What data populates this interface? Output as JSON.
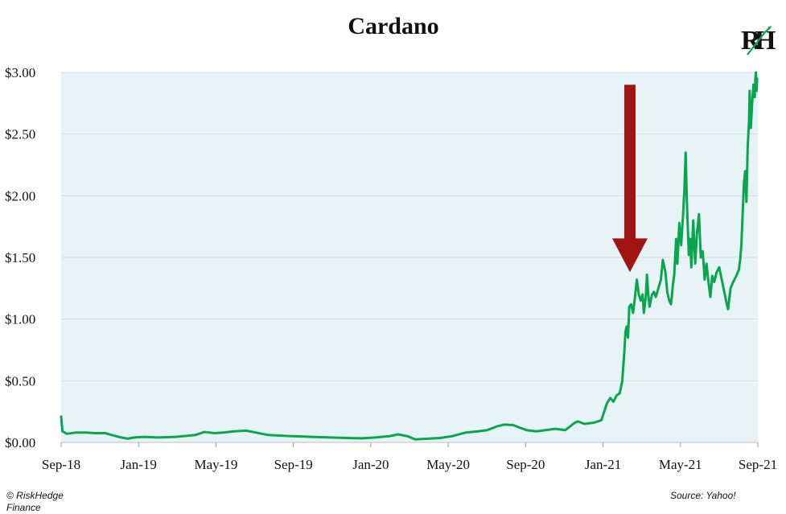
{
  "chart_data": {
    "type": "line",
    "title": "Cardano",
    "xlabel": "",
    "ylabel": "",
    "x_ticks": [
      "Sep-18",
      "Jan-19",
      "May-19",
      "Sep-19",
      "Jan-20",
      "May-20",
      "Sep-20",
      "Jan-21",
      "May-21",
      "Sep-21"
    ],
    "y_ticks": [
      "$0.00",
      "$0.50",
      "$1.00",
      "$1.50",
      "$2.00",
      "$2.50",
      "$3.00"
    ],
    "xlim": [
      "2018-09-01",
      "2021-09-05"
    ],
    "ylim": [
      0,
      3.0
    ],
    "grid": "horizontal",
    "plot_background": "#e8f3f7",
    "line_color": "#0aa64e",
    "arrow_color": "#a01414",
    "arrow_annotation": {
      "x": "2021-02-15",
      "y_top": 2.9,
      "y_tip": 1.38
    },
    "series": [
      {
        "points": [
          [
            "2018-09-01",
            0.21
          ],
          [
            "2018-09-03",
            0.09
          ],
          [
            "2018-09-10",
            0.07
          ],
          [
            "2018-09-25",
            0.08
          ],
          [
            "2018-10-10",
            0.08
          ],
          [
            "2018-10-25",
            0.075
          ],
          [
            "2018-11-10",
            0.075
          ],
          [
            "2018-11-20",
            0.06
          ],
          [
            "2018-12-05",
            0.04
          ],
          [
            "2018-12-15",
            0.03
          ],
          [
            "2018-12-25",
            0.04
          ],
          [
            "2019-01-10",
            0.045
          ],
          [
            "2019-02-01",
            0.04
          ],
          [
            "2019-03-01",
            0.045
          ],
          [
            "2019-04-01",
            0.06
          ],
          [
            "2019-04-15",
            0.085
          ],
          [
            "2019-05-01",
            0.075
          ],
          [
            "2019-05-15",
            0.08
          ],
          [
            "2019-06-01",
            0.09
          ],
          [
            "2019-06-20",
            0.095
          ],
          [
            "2019-07-05",
            0.08
          ],
          [
            "2019-07-25",
            0.06
          ],
          [
            "2019-08-15",
            0.055
          ],
          [
            "2019-09-01",
            0.05
          ],
          [
            "2019-10-01",
            0.045
          ],
          [
            "2019-11-01",
            0.04
          ],
          [
            "2019-12-01",
            0.035
          ],
          [
            "2019-12-20",
            0.033
          ],
          [
            "2020-01-10",
            0.04
          ],
          [
            "2020-02-01",
            0.05
          ],
          [
            "2020-02-15",
            0.065
          ],
          [
            "2020-03-01",
            0.05
          ],
          [
            "2020-03-13",
            0.025
          ],
          [
            "2020-04-01",
            0.03
          ],
          [
            "2020-04-20",
            0.035
          ],
          [
            "2020-05-10",
            0.05
          ],
          [
            "2020-06-01",
            0.08
          ],
          [
            "2020-06-20",
            0.09
          ],
          [
            "2020-07-05",
            0.1
          ],
          [
            "2020-07-20",
            0.13
          ],
          [
            "2020-08-01",
            0.145
          ],
          [
            "2020-08-15",
            0.14
          ],
          [
            "2020-08-25",
            0.12
          ],
          [
            "2020-09-05",
            0.1
          ],
          [
            "2020-09-20",
            0.09
          ],
          [
            "2020-10-05",
            0.1
          ],
          [
            "2020-10-20",
            0.11
          ],
          [
            "2020-11-05",
            0.1
          ],
          [
            "2020-11-20",
            0.16
          ],
          [
            "2020-11-25",
            0.17
          ],
          [
            "2020-12-05",
            0.15
          ],
          [
            "2020-12-20",
            0.16
          ],
          [
            "2021-01-01",
            0.18
          ],
          [
            "2021-01-10",
            0.32
          ],
          [
            "2021-01-15",
            0.36
          ],
          [
            "2021-01-20",
            0.33
          ],
          [
            "2021-01-25",
            0.38
          ],
          [
            "2021-01-30",
            0.4
          ],
          [
            "2021-02-03",
            0.5
          ],
          [
            "2021-02-06",
            0.72
          ],
          [
            "2021-02-08",
            0.9
          ],
          [
            "2021-02-10",
            0.94
          ],
          [
            "2021-02-12",
            0.85
          ],
          [
            "2021-02-14",
            1.1
          ],
          [
            "2021-02-17",
            1.12
          ],
          [
            "2021-02-20",
            1.05
          ],
          [
            "2021-02-23",
            1.18
          ],
          [
            "2021-02-26",
            1.32
          ],
          [
            "2021-03-01",
            1.2
          ],
          [
            "2021-03-04",
            1.15
          ],
          [
            "2021-03-07",
            1.2
          ],
          [
            "2021-03-09",
            1.05
          ],
          [
            "2021-03-12",
            1.18
          ],
          [
            "2021-03-14",
            1.36
          ],
          [
            "2021-03-16",
            1.2
          ],
          [
            "2021-03-18",
            1.1
          ],
          [
            "2021-03-22",
            1.2
          ],
          [
            "2021-03-25",
            1.22
          ],
          [
            "2021-03-28",
            1.18
          ],
          [
            "2021-04-01",
            1.25
          ],
          [
            "2021-04-05",
            1.32
          ],
          [
            "2021-04-08",
            1.48
          ],
          [
            "2021-04-12",
            1.38
          ],
          [
            "2021-04-15",
            1.22
          ],
          [
            "2021-04-18",
            1.15
          ],
          [
            "2021-04-21",
            1.12
          ],
          [
            "2021-04-24",
            1.28
          ],
          [
            "2021-04-26",
            1.36
          ],
          [
            "2021-04-29",
            1.65
          ],
          [
            "2021-05-01",
            1.45
          ],
          [
            "2021-05-04",
            1.78
          ],
          [
            "2021-05-07",
            1.6
          ],
          [
            "2021-05-10",
            1.85
          ],
          [
            "2021-05-12",
            2.05
          ],
          [
            "2021-05-14",
            2.35
          ],
          [
            "2021-05-16",
            1.95
          ],
          [
            "2021-05-19",
            1.52
          ],
          [
            "2021-05-21",
            1.65
          ],
          [
            "2021-05-23",
            1.42
          ],
          [
            "2021-05-26",
            1.8
          ],
          [
            "2021-05-29",
            1.45
          ],
          [
            "2021-06-01",
            1.7
          ],
          [
            "2021-06-04",
            1.85
          ],
          [
            "2021-06-07",
            1.5
          ],
          [
            "2021-06-10",
            1.55
          ],
          [
            "2021-06-13",
            1.32
          ],
          [
            "2021-06-16",
            1.45
          ],
          [
            "2021-06-19",
            1.3
          ],
          [
            "2021-06-22",
            1.18
          ],
          [
            "2021-06-25",
            1.35
          ],
          [
            "2021-06-28",
            1.3
          ],
          [
            "2021-07-02",
            1.38
          ],
          [
            "2021-07-06",
            1.42
          ],
          [
            "2021-07-10",
            1.32
          ],
          [
            "2021-07-14",
            1.22
          ],
          [
            "2021-07-18",
            1.12
          ],
          [
            "2021-07-20",
            1.08
          ],
          [
            "2021-07-24",
            1.25
          ],
          [
            "2021-07-28",
            1.3
          ],
          [
            "2021-08-02",
            1.35
          ],
          [
            "2021-08-06",
            1.4
          ],
          [
            "2021-08-08",
            1.48
          ],
          [
            "2021-08-10",
            1.6
          ],
          [
            "2021-08-12",
            1.85
          ],
          [
            "2021-08-14",
            2.1
          ],
          [
            "2021-08-16",
            2.2
          ],
          [
            "2021-08-18",
            1.95
          ],
          [
            "2021-08-20",
            2.4
          ],
          [
            "2021-08-22",
            2.6
          ],
          [
            "2021-08-23",
            2.85
          ],
          [
            "2021-08-25",
            2.55
          ],
          [
            "2021-08-27",
            2.75
          ],
          [
            "2021-08-29",
            2.9
          ],
          [
            "2021-08-31",
            2.8
          ],
          [
            "2021-09-01",
            2.95
          ],
          [
            "2021-09-02",
            3.0
          ],
          [
            "2021-09-03",
            2.85
          ],
          [
            "2021-09-04",
            2.95
          ]
        ]
      }
    ]
  },
  "footer": {
    "copyright": "© RiskHedge Finance",
    "source": "Source: Yahoo!"
  },
  "logo": {
    "text": "RH",
    "icon": "riskhedge-logo-icon"
  }
}
